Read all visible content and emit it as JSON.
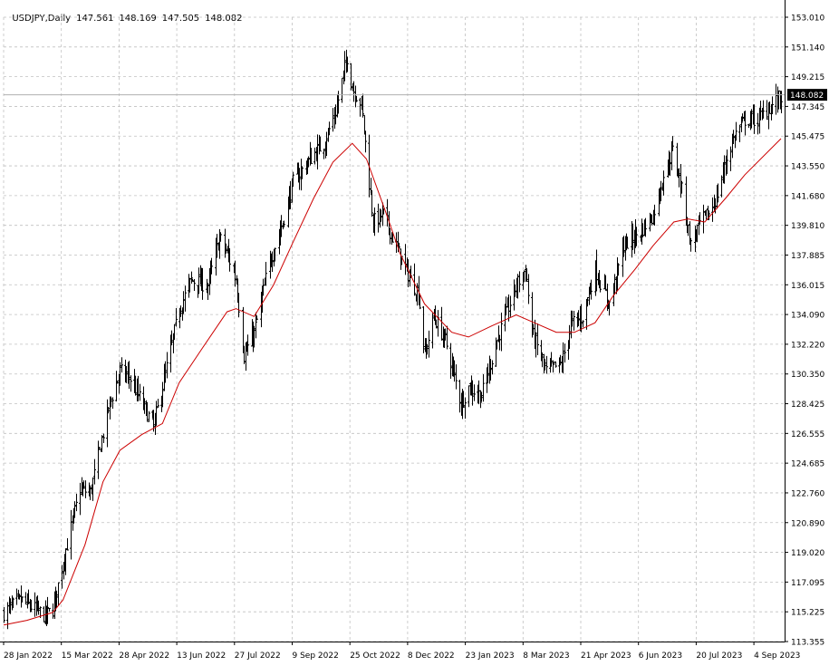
{
  "header": {
    "symbol": "USDJPY,Daily",
    "open": "147.561",
    "high": "148.169",
    "low": "147.505",
    "close": "148.082"
  },
  "colors": {
    "background": "#ffffff",
    "grid": "#c0c0c0",
    "bars": "#000000",
    "moving_average": "#cc0000",
    "current_price_line": "#b0b0b0",
    "price_label_bg": "#000000",
    "price_label_text": "#ffffff"
  },
  "chart_data": {
    "type": "bar",
    "title": "USDJPY,Daily",
    "grid": true,
    "ylim": [
      113.355,
      153.01
    ],
    "y_ticks": [
      "153.010",
      "151.140",
      "149.215",
      "147.345",
      "145.475",
      "143.550",
      "141.680",
      "139.810",
      "137.885",
      "136.015",
      "134.090",
      "132.220",
      "130.350",
      "128.425",
      "126.555",
      "124.685",
      "122.760",
      "120.890",
      "119.020",
      "117.095",
      "115.225",
      "113.355"
    ],
    "x_ticks": [
      "28 Jan 2022",
      "15 Mar 2022",
      "28 Apr 2022",
      "13 Jun 2022",
      "27 Jul 2022",
      "9 Sep 2022",
      "25 Oct 2022",
      "8 Dec 2022",
      "23 Jan 2023",
      "8 Mar 2023",
      "21 Apr 2023",
      "6 Jun 2023",
      "20 Jul 2023",
      "4 Sep 2023"
    ],
    "current_price": 148.082,
    "current_price_label": "148.082",
    "close_path": [
      [
        "2022-01-28",
        115.2
      ],
      [
        "2022-02-10",
        116.0
      ],
      [
        "2022-03-01",
        115.0
      ],
      [
        "2022-03-07",
        115.4
      ],
      [
        "2022-03-15",
        118.5
      ],
      [
        "2022-03-28",
        123.0
      ],
      [
        "2022-04-05",
        122.8
      ],
      [
        "2022-04-20",
        128.5
      ],
      [
        "2022-04-28",
        130.5
      ],
      [
        "2022-05-05",
        130.2
      ],
      [
        "2022-05-12",
        129.0
      ],
      [
        "2022-05-24",
        127.0
      ],
      [
        "2022-06-01",
        130.0
      ],
      [
        "2022-06-13",
        134.5
      ],
      [
        "2022-06-22",
        136.3
      ],
      [
        "2022-07-05",
        136.0
      ],
      [
        "2022-07-14",
        139.0
      ],
      [
        "2022-07-20",
        138.0
      ],
      [
        "2022-07-27",
        136.3
      ],
      [
        "2022-08-02",
        131.5
      ],
      [
        "2022-08-10",
        133.0
      ],
      [
        "2022-08-22",
        137.5
      ],
      [
        "2022-09-01",
        140.0
      ],
      [
        "2022-09-09",
        142.5
      ],
      [
        "2022-09-22",
        144.0
      ],
      [
        "2022-10-03",
        145.0
      ],
      [
        "2022-10-12",
        147.0
      ],
      [
        "2022-10-21",
        150.5
      ],
      [
        "2022-10-25",
        148.5
      ],
      [
        "2022-11-01",
        147.5
      ],
      [
        "2022-11-10",
        140.0
      ],
      [
        "2022-11-18",
        140.5
      ],
      [
        "2022-11-30",
        138.0
      ],
      [
        "2022-12-08",
        136.5
      ],
      [
        "2022-12-15",
        135.5
      ],
      [
        "2022-12-20",
        131.5
      ],
      [
        "2022-12-27",
        134.0
      ],
      [
        "2023-01-05",
        132.5
      ],
      [
        "2023-01-17",
        128.5
      ],
      [
        "2023-01-23",
        129.5
      ],
      [
        "2023-02-02",
        129.0
      ],
      [
        "2023-02-14",
        132.5
      ],
      [
        "2023-03-01",
        136.0
      ],
      [
        "2023-03-08",
        137.0
      ],
      [
        "2023-03-13",
        133.0
      ],
      [
        "2023-03-24",
        130.5
      ],
      [
        "2023-04-05",
        131.0
      ],
      [
        "2023-04-12",
        133.5
      ],
      [
        "2023-04-21",
        134.0
      ],
      [
        "2023-05-01",
        137.0
      ],
      [
        "2023-05-12",
        134.8
      ],
      [
        "2023-05-23",
        138.5
      ],
      [
        "2023-06-06",
        139.5
      ],
      [
        "2023-06-15",
        140.5
      ],
      [
        "2023-06-23",
        143.0
      ],
      [
        "2023-06-30",
        144.5
      ],
      [
        "2023-07-06",
        142.5
      ],
      [
        "2023-07-12",
        139.5
      ],
      [
        "2023-07-14",
        138.5
      ],
      [
        "2023-07-20",
        139.8
      ],
      [
        "2023-07-28",
        140.5
      ],
      [
        "2023-08-04",
        141.8
      ],
      [
        "2023-08-10",
        143.8
      ],
      [
        "2023-08-17",
        145.5
      ],
      [
        "2023-08-25",
        146.5
      ],
      [
        "2023-09-04",
        146.5
      ],
      [
        "2023-09-12",
        147.2
      ],
      [
        "2023-09-22",
        148.0
      ]
    ],
    "series": [
      {
        "values_source": "close_path",
        "style": "ohlc-bars"
      },
      {
        "values_source": "moving_average",
        "style": "line"
      }
    ],
    "moving_average": [
      [
        "2022-01-28",
        114.4
      ],
      [
        "2022-02-15",
        114.7
      ],
      [
        "2022-03-07",
        115.2
      ],
      [
        "2022-03-15",
        116.0
      ],
      [
        "2022-04-01",
        119.5
      ],
      [
        "2022-04-15",
        123.5
      ],
      [
        "2022-04-28",
        125.5
      ],
      [
        "2022-05-15",
        126.5
      ],
      [
        "2022-05-31",
        127.2
      ],
      [
        "2022-06-13",
        129.8
      ],
      [
        "2022-07-01",
        132.0
      ],
      [
        "2022-07-20",
        134.3
      ],
      [
        "2022-07-27",
        134.5
      ],
      [
        "2022-08-10",
        134.0
      ],
      [
        "2022-08-25",
        136.0
      ],
      [
        "2022-09-09",
        138.7
      ],
      [
        "2022-09-25",
        141.5
      ],
      [
        "2022-10-10",
        143.8
      ],
      [
        "2022-10-25",
        145.0
      ],
      [
        "2022-11-05",
        144.0
      ],
      [
        "2022-11-20",
        140.6
      ],
      [
        "2022-12-01",
        138.0
      ],
      [
        "2022-12-20",
        134.8
      ],
      [
        "2023-01-10",
        133.0
      ],
      [
        "2023-01-23",
        132.7
      ],
      [
        "2023-02-10",
        133.4
      ],
      [
        "2023-03-01",
        134.1
      ],
      [
        "2023-03-15",
        133.6
      ],
      [
        "2023-04-01",
        133.0
      ],
      [
        "2023-04-15",
        133.0
      ],
      [
        "2023-05-01",
        133.6
      ],
      [
        "2023-05-15",
        135.3
      ],
      [
        "2023-06-01",
        137.0
      ],
      [
        "2023-06-15",
        138.5
      ],
      [
        "2023-07-01",
        140.0
      ],
      [
        "2023-07-12",
        140.2
      ],
      [
        "2023-07-25",
        140.0
      ],
      [
        "2023-08-10",
        141.5
      ],
      [
        "2023-08-25",
        143.0
      ],
      [
        "2023-09-22",
        145.3
      ]
    ]
  }
}
